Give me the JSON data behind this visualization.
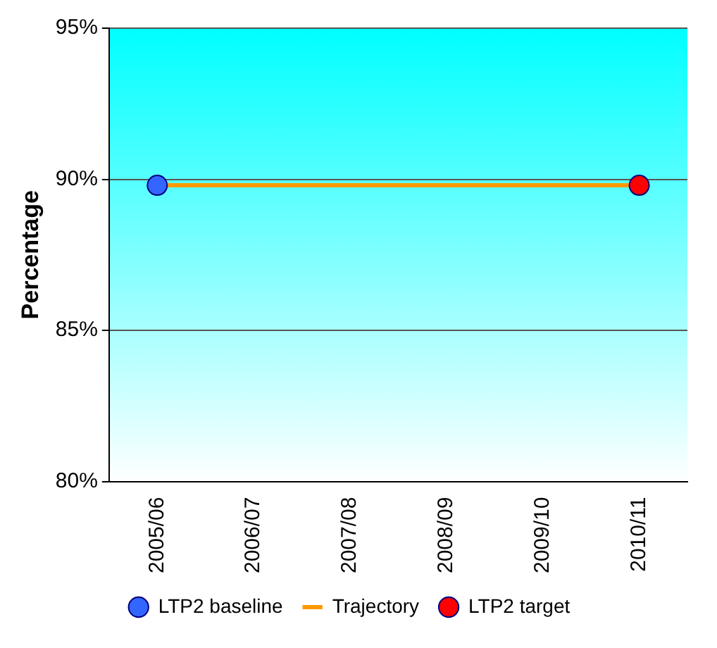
{
  "chart_data": {
    "type": "line",
    "ylabel": "Percentage",
    "categories": [
      "2005/06",
      "2006/07",
      "2007/08",
      "2008/09",
      "2009/10",
      "2010/11"
    ],
    "series": [
      {
        "name": "LTP2 baseline",
        "type": "scatter",
        "color": "#3366ff",
        "marker": "circle",
        "values": [
          89.8,
          null,
          null,
          null,
          null,
          null
        ]
      },
      {
        "name": "Trajectory",
        "type": "line",
        "color": "#ff9900",
        "marker": "none",
        "line_style": "solid",
        "values": [
          89.8,
          89.8,
          89.8,
          89.8,
          89.8,
          89.8
        ]
      },
      {
        "name": "LTP2 target",
        "type": "scatter",
        "color": "#ff0000",
        "marker": "circle",
        "values": [
          null,
          null,
          null,
          null,
          null,
          89.8
        ]
      }
    ],
    "ylim": [
      80,
      95
    ],
    "yticks": [
      {
        "value": 80,
        "label": "80%"
      },
      {
        "value": 85,
        "label": "85%"
      },
      {
        "value": 90,
        "label": "90%"
      },
      {
        "value": 95,
        "label": "95%"
      }
    ],
    "grid": "y",
    "legend": "bottom"
  }
}
